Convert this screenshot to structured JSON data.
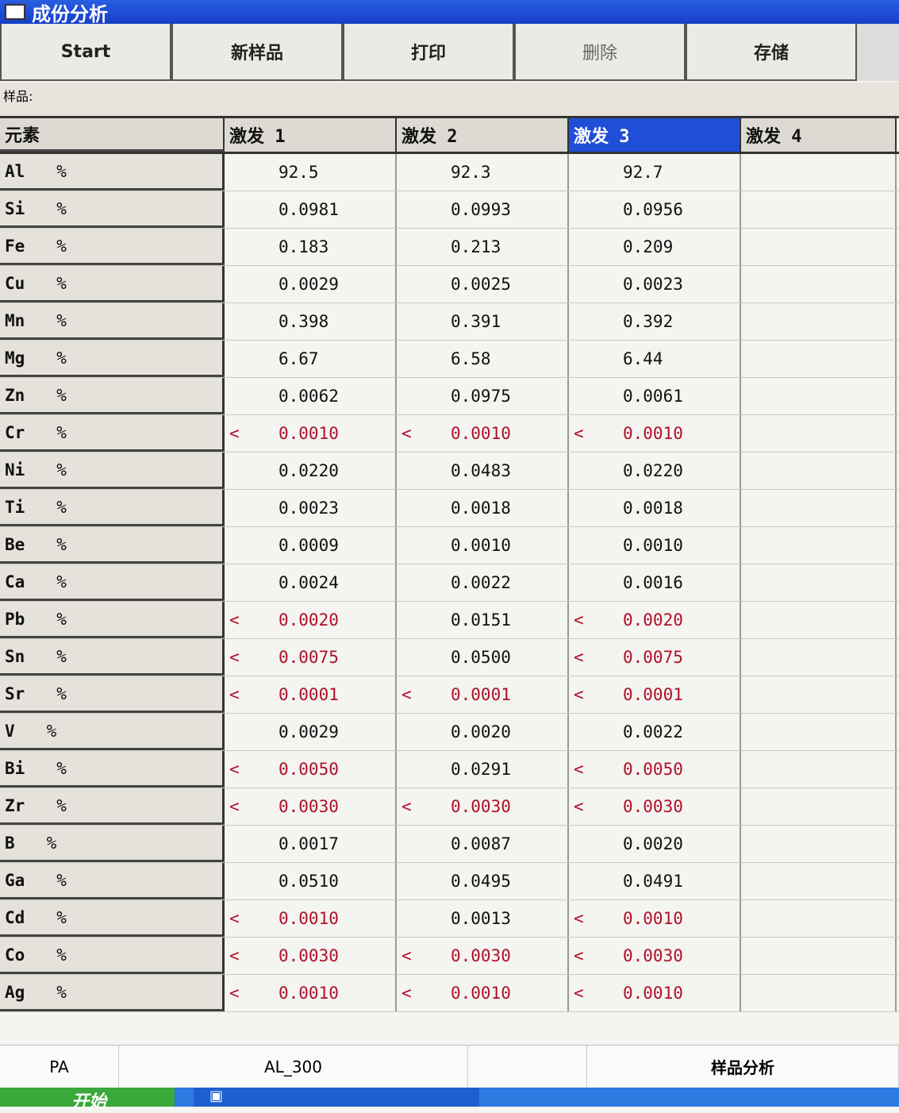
{
  "window": {
    "title": "成份分析"
  },
  "toolbar": [
    "Start",
    "新样品",
    "打印",
    "删除",
    "存储"
  ],
  "sample_label": "样品:",
  "table": {
    "headers": [
      "元素",
      "激发 1",
      "激发 2",
      "激发 3",
      "激发 4"
    ],
    "selected_column": 3,
    "rows": [
      {
        "el": "Al",
        "unit": "%",
        "v": [
          [
            "",
            "92.5"
          ],
          [
            "",
            "92.3"
          ],
          [
            "",
            "92.7"
          ]
        ]
      },
      {
        "el": "Si",
        "unit": "%",
        "v": [
          [
            "",
            "0.0981"
          ],
          [
            "",
            "0.0993"
          ],
          [
            "",
            "0.0956"
          ]
        ]
      },
      {
        "el": "Fe",
        "unit": "%",
        "v": [
          [
            "",
            "0.183"
          ],
          [
            "",
            "0.213"
          ],
          [
            "",
            "0.209"
          ]
        ]
      },
      {
        "el": "Cu",
        "unit": "%",
        "v": [
          [
            "",
            "0.0029"
          ],
          [
            "",
            "0.0025"
          ],
          [
            "",
            "0.0023"
          ]
        ]
      },
      {
        "el": "Mn",
        "unit": "%",
        "v": [
          [
            "",
            "0.398"
          ],
          [
            "",
            "0.391"
          ],
          [
            "",
            "0.392"
          ]
        ]
      },
      {
        "el": "Mg",
        "unit": "%",
        "v": [
          [
            "",
            "6.67"
          ],
          [
            "",
            "6.58"
          ],
          [
            "",
            "6.44"
          ]
        ]
      },
      {
        "el": "Zn",
        "unit": "%",
        "v": [
          [
            "",
            "0.0062"
          ],
          [
            "",
            "0.0975"
          ],
          [
            "",
            "0.0061"
          ]
        ]
      },
      {
        "el": "Cr",
        "unit": "%",
        "v": [
          [
            "<",
            "0.0010"
          ],
          [
            "<",
            "0.0010"
          ],
          [
            "<",
            "0.0010"
          ]
        ]
      },
      {
        "el": "Ni",
        "unit": "%",
        "v": [
          [
            "",
            "0.0220"
          ],
          [
            "",
            "0.0483"
          ],
          [
            "",
            "0.0220"
          ]
        ]
      },
      {
        "el": "Ti",
        "unit": "%",
        "v": [
          [
            "",
            "0.0023"
          ],
          [
            "",
            "0.0018"
          ],
          [
            "",
            "0.0018"
          ]
        ]
      },
      {
        "el": "Be",
        "unit": "%",
        "v": [
          [
            "",
            "0.0009"
          ],
          [
            "",
            "0.0010"
          ],
          [
            "",
            "0.0010"
          ]
        ]
      },
      {
        "el": "Ca",
        "unit": "%",
        "v": [
          [
            "",
            "0.0024"
          ],
          [
            "",
            "0.0022"
          ],
          [
            "",
            "0.0016"
          ]
        ]
      },
      {
        "el": "Pb",
        "unit": "%",
        "v": [
          [
            "<",
            "0.0020"
          ],
          [
            "",
            "0.0151"
          ],
          [
            "<",
            "0.0020"
          ]
        ]
      },
      {
        "el": "Sn",
        "unit": "%",
        "v": [
          [
            "<",
            "0.0075"
          ],
          [
            "",
            "0.0500"
          ],
          [
            "<",
            "0.0075"
          ]
        ]
      },
      {
        "el": "Sr",
        "unit": "%",
        "v": [
          [
            "<",
            "0.0001"
          ],
          [
            "<",
            "0.0001"
          ],
          [
            "<",
            "0.0001"
          ]
        ]
      },
      {
        "el": "V",
        "unit": "%",
        "v": [
          [
            "",
            "0.0029"
          ],
          [
            "",
            "0.0020"
          ],
          [
            "",
            "0.0022"
          ]
        ]
      },
      {
        "el": "Bi",
        "unit": "%",
        "v": [
          [
            "<",
            "0.0050"
          ],
          [
            "",
            "0.0291"
          ],
          [
            "<",
            "0.0050"
          ]
        ]
      },
      {
        "el": "Zr",
        "unit": "%",
        "v": [
          [
            "<",
            "0.0030"
          ],
          [
            "<",
            "0.0030"
          ],
          [
            "<",
            "0.0030"
          ]
        ]
      },
      {
        "el": "B",
        "unit": "%",
        "v": [
          [
            "",
            "0.0017"
          ],
          [
            "",
            "0.0087"
          ],
          [
            "",
            "0.0020"
          ]
        ]
      },
      {
        "el": "Ga",
        "unit": "%",
        "v": [
          [
            "",
            "0.0510"
          ],
          [
            "",
            "0.0495"
          ],
          [
            "",
            "0.0491"
          ]
        ]
      },
      {
        "el": "Cd",
        "unit": "%",
        "v": [
          [
            "<",
            "0.0010"
          ],
          [
            "",
            "0.0013"
          ],
          [
            "<",
            "0.0010"
          ]
        ]
      },
      {
        "el": "Co",
        "unit": "%",
        "v": [
          [
            "<",
            "0.0030"
          ],
          [
            "<",
            "0.0030"
          ],
          [
            "<",
            "0.0030"
          ]
        ]
      },
      {
        "el": "Ag",
        "unit": "%",
        "v": [
          [
            "<",
            "0.0010"
          ],
          [
            "<",
            "0.0010"
          ],
          [
            "<",
            "0.0010"
          ]
        ]
      }
    ]
  },
  "status": [
    "PA",
    "AL_300",
    "",
    "样品分析"
  ],
  "taskbar": {
    "start": "开始"
  },
  "colors": {
    "below_limit": "#b0102a",
    "selected": "#1f4fd6"
  }
}
